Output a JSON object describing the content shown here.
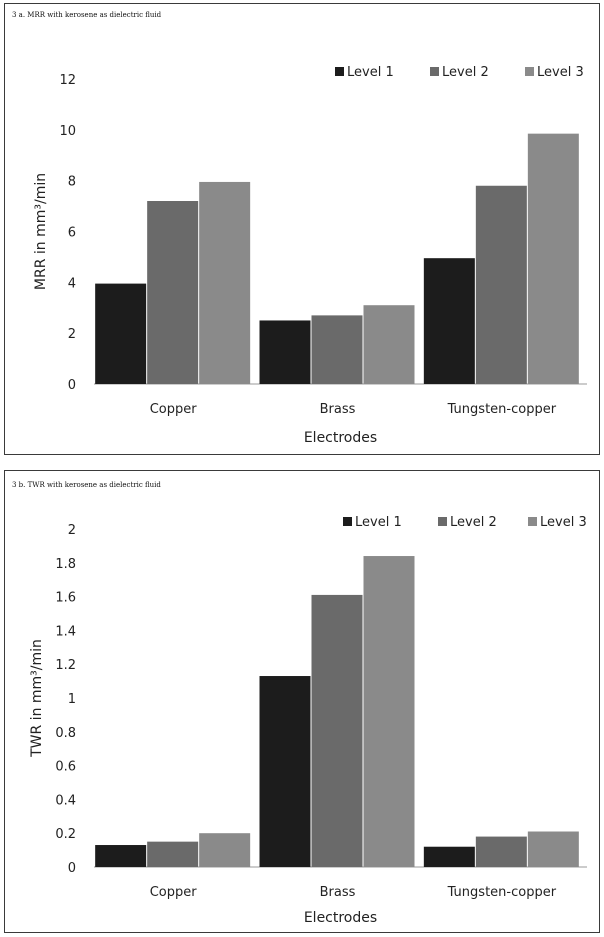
{
  "chart_data": [
    {
      "type": "bar",
      "title": "3 a. MRR with kerosene as dielectric fluid",
      "xlabel": "Electrodes",
      "ylabel": "MRR in mm³/min",
      "ylim": [
        0,
        12
      ],
      "yticks": [
        "0",
        "2",
        "4",
        "6",
        "8",
        "10",
        "12"
      ],
      "categories": [
        "Copper",
        "Brass",
        "Tungsten-copper"
      ],
      "legend_position": "top-right",
      "series": [
        {
          "name": "Level 1",
          "color": "#1c1c1c",
          "values": [
            3.95,
            2.5,
            4.95
          ]
        },
        {
          "name": "Level 2",
          "color": "#6a6a6a",
          "values": [
            7.2,
            2.7,
            7.8
          ]
        },
        {
          "name": "Level 3",
          "color": "#8a8a8a",
          "values": [
            7.95,
            3.1,
            9.85
          ]
        }
      ]
    },
    {
      "type": "bar",
      "title": "3 b. TWR with kerosene as dielectric fluid",
      "xlabel": "Electrodes",
      "ylabel": "TWR in mm³/min",
      "ylim": [
        0,
        2
      ],
      "yticks": [
        "0",
        "0.2",
        "0.4",
        "0.6",
        "0.8",
        "1",
        "1.2",
        "1.4",
        "1.6",
        "1.8",
        "2"
      ],
      "categories": [
        "Copper",
        "Brass",
        "Tungsten-copper"
      ],
      "legend_position": "top-right",
      "series": [
        {
          "name": "Level 1",
          "color": "#1c1c1c",
          "values": [
            0.13,
            1.13,
            0.12
          ]
        },
        {
          "name": "Level 2",
          "color": "#6a6a6a",
          "values": [
            0.15,
            1.61,
            0.18
          ]
        },
        {
          "name": "Level 3",
          "color": "#8a8a8a",
          "values": [
            0.2,
            1.84,
            0.21
          ]
        }
      ]
    }
  ]
}
